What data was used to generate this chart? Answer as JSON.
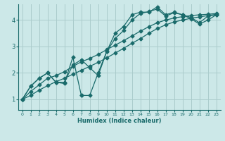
{
  "xlabel": "Humidex (Indice chaleur)",
  "ylabel": "",
  "xlim": [
    -0.5,
    23.5
  ],
  "ylim": [
    0.6,
    4.6
  ],
  "yticks": [
    1,
    2,
    3,
    4
  ],
  "xticks": [
    0,
    1,
    2,
    3,
    4,
    5,
    6,
    7,
    8,
    9,
    10,
    11,
    12,
    13,
    14,
    15,
    16,
    17,
    18,
    19,
    20,
    21,
    22,
    23
  ],
  "bg_color": "#cce8e8",
  "grid_color": "#aacccc",
  "line_color": "#1a6b6b",
  "lines": [
    {
      "x": [
        0,
        1,
        2,
        3,
        4,
        5,
        6,
        7,
        7,
        8,
        9,
        10,
        11,
        12,
        13,
        14,
        15,
        16,
        17,
        18,
        19,
        20,
        21,
        22,
        23
      ],
      "y": [
        1.0,
        1.5,
        1.8,
        2.0,
        1.65,
        1.6,
        2.6,
        1.15,
        1.15,
        1.15,
        2.0,
        2.8,
        3.5,
        3.75,
        4.2,
        4.3,
        4.3,
        4.5,
        4.2,
        4.3,
        4.2,
        4.1,
        3.9,
        4.15,
        4.2
      ]
    },
    {
      "x": [
        0,
        1,
        2,
        3,
        4,
        5,
        6,
        7,
        8,
        9,
        10,
        11,
        12,
        13,
        14,
        15,
        16,
        17,
        18,
        19,
        20,
        21,
        22,
        23
      ],
      "y": [
        1.0,
        1.3,
        1.55,
        1.8,
        1.9,
        2.05,
        2.25,
        2.42,
        2.55,
        2.7,
        2.88,
        3.05,
        3.22,
        3.4,
        3.58,
        3.75,
        3.9,
        4.0,
        4.08,
        4.13,
        4.17,
        4.2,
        4.22,
        4.25
      ]
    },
    {
      "x": [
        0,
        1,
        2,
        3,
        4,
        5,
        6,
        7,
        8,
        9,
        10,
        11,
        12,
        13,
        14,
        15,
        16,
        17,
        18,
        19,
        20,
        21,
        22,
        23
      ],
      "y": [
        1.0,
        1.15,
        1.35,
        1.52,
        1.67,
        1.8,
        1.95,
        2.1,
        2.25,
        2.4,
        2.57,
        2.75,
        2.93,
        3.12,
        3.3,
        3.5,
        3.68,
        3.82,
        3.93,
        4.0,
        4.07,
        4.12,
        4.17,
        4.22
      ]
    },
    {
      "x": [
        0,
        1,
        2,
        3,
        4,
        5,
        6,
        7,
        8,
        9,
        10,
        11,
        12,
        13,
        14,
        15,
        16,
        17,
        18,
        19,
        20,
        21,
        22,
        23
      ],
      "y": [
        1.0,
        1.5,
        1.8,
        2.0,
        1.65,
        1.65,
        2.3,
        2.5,
        2.2,
        1.9,
        2.8,
        3.3,
        3.6,
        4.0,
        4.25,
        4.32,
        4.42,
        4.15,
        4.28,
        4.2,
        4.05,
        3.85,
        4.0,
        4.2
      ]
    }
  ],
  "marker": "D",
  "markersize": 2.5,
  "linewidth": 0.9
}
